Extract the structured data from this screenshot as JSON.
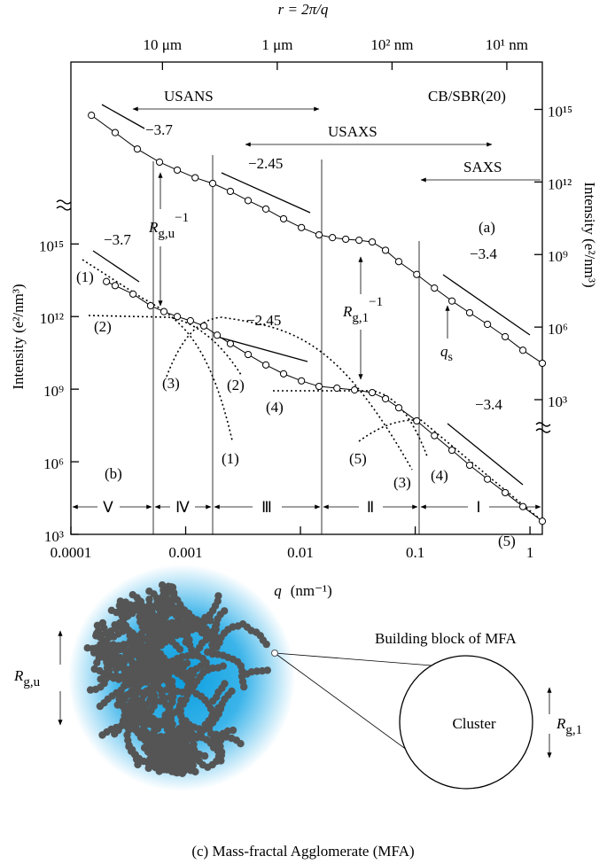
{
  "chart_data": {
    "type": "scatter",
    "x2_label": "r = 2π/q",
    "xlabel": {
      "symbol": "q",
      "unit": "(nm⁻¹)"
    },
    "ylabel": "Intensity (e²/nm³)",
    "y2label": "Intensity (e²/nm³)",
    "xscale": "log",
    "yscale": "log",
    "xlim": [
      0.0001,
      1.28
    ],
    "ylim": [
      1000,
      3.3e+22
    ],
    "y2lim": [
      0.0027,
      9.1e+16
    ],
    "xticks": [
      0.0001,
      0.001,
      0.01,
      0.1,
      1
    ],
    "x2ticks": [
      {
        "value": 0.000628,
        "label": "10 μm"
      },
      {
        "value": 0.00628,
        "label": "1 μm"
      },
      {
        "value": 0.0628,
        "label": "10² nm"
      },
      {
        "value": 0.628,
        "label": "10¹ nm"
      }
    ],
    "yticks": [
      {
        "value": 1000,
        "label": "10³"
      },
      {
        "value": 1000000,
        "label": "10⁶"
      },
      {
        "value": 1000000000,
        "label": "10⁹"
      },
      {
        "value": 1000000000000,
        "label": "10¹²"
      },
      {
        "value": 1000000000000000,
        "label": "10¹⁵"
      }
    ],
    "y2ticks": [
      {
        "value": 1000,
        "label": "10³"
      },
      {
        "value": 1000000,
        "label": "10⁶"
      },
      {
        "value": 1000000000,
        "label": "10⁹"
      },
      {
        "value": 1000000000000,
        "label": "10¹²"
      },
      {
        "value": 1000000000000000,
        "label": "10¹⁵"
      }
    ],
    "series": [
      {
        "name": "(a)",
        "color": "#000000",
        "axis": "y2",
        "x": [
          0.000151,
          0.000243,
          0.000379,
          0.000592,
          0.000845,
          0.00121,
          0.00172,
          0.00245,
          0.0035,
          0.005,
          0.00713,
          0.0102,
          0.0145,
          0.019,
          0.0248,
          0.0324,
          0.0422,
          0.0551,
          0.0719,
          0.103,
          0.147,
          0.209,
          0.298,
          0.426,
          0.608,
          0.867,
          1.28
        ],
        "values": [
          570000000000000.0,
          110000000000000.0,
          23000000000000.0,
          6600000000000.0,
          3100000000000.0,
          1500000000000.0,
          870000000000.0,
          410000000000.0,
          170000000000.0,
          76000000000.0,
          30000000000.0,
          13000000000.0,
          6500000000.0,
          5000000000.0,
          4300000000.0,
          3900000000.0,
          3300000000.0,
          1500000000.0,
          510000000.0,
          150000000.0,
          41000000.0,
          12000000.0,
          3900000.0,
          1300000.0,
          400000.0,
          110000.0,
          32000.0
        ]
      },
      {
        "name": "(b)",
        "color": "#000000",
        "x": [
          0.000204,
          0.000243,
          0.000348,
          0.000495,
          0.000647,
          0.000845,
          0.0011,
          0.00144,
          0.00188,
          0.00245,
          0.0035,
          0.005,
          0.00713,
          0.0102,
          0.0145,
          0.0208,
          0.0296,
          0.0422,
          0.0551,
          0.0719,
          0.103,
          0.147,
          0.209,
          0.298,
          0.426,
          0.608,
          0.867,
          1.28
        ],
        "values": [
          28000000000000.0,
          19000000000000.0,
          8500000000000.0,
          2800000000000.0,
          1600000000000.0,
          1000000000000.0,
          670000000000.0,
          410000000000.0,
          170000000000.0,
          76000000000.0,
          27000000000.0,
          10000000000.0,
          4300000000.0,
          2200000000.0,
          1300000000.0,
          1100000000.0,
          930000000.0,
          720000000.0,
          400000000.0,
          170000000.0,
          49000000.0,
          12000000.0,
          3000000.0,
          720000.0,
          190000.0,
          53000.0,
          14000.0,
          3500.0
        ]
      }
    ],
    "annotations": {
      "slopes": [
        "−3.7",
        "−2.45",
        "−3.4",
        "−3.7",
        "−2.45",
        "−3.4"
      ],
      "ranges": [
        "USANS",
        "USAXS",
        "SAXS"
      ],
      "sample": "CB/SBR(20)",
      "rg_u": {
        "main": "R",
        "sub": "g,u",
        "sup": "−1"
      },
      "rg_1": {
        "main": "R",
        "sub": "g,1",
        "sup": "−1"
      },
      "qs": {
        "main": "q",
        "sub": "s"
      },
      "components": [
        "(1)",
        "(2)",
        "(3)",
        "(2)",
        "(1)",
        "(4)",
        "(5)",
        "(3)",
        "(4)",
        "(5)"
      ],
      "regions": [
        "Ⅴ",
        "Ⅳ",
        "Ⅲ",
        "Ⅱ",
        "Ⅰ"
      ]
    }
  },
  "figure_c": {
    "rg_u": {
      "main": "R",
      "sub": "g,u"
    },
    "title": "Building block of MFA",
    "cluster": "Cluster",
    "rg_1": {
      "main": "R",
      "sub": "g,1"
    },
    "caption": "(c)  Mass-fractal Agglomerate (MFA)"
  }
}
